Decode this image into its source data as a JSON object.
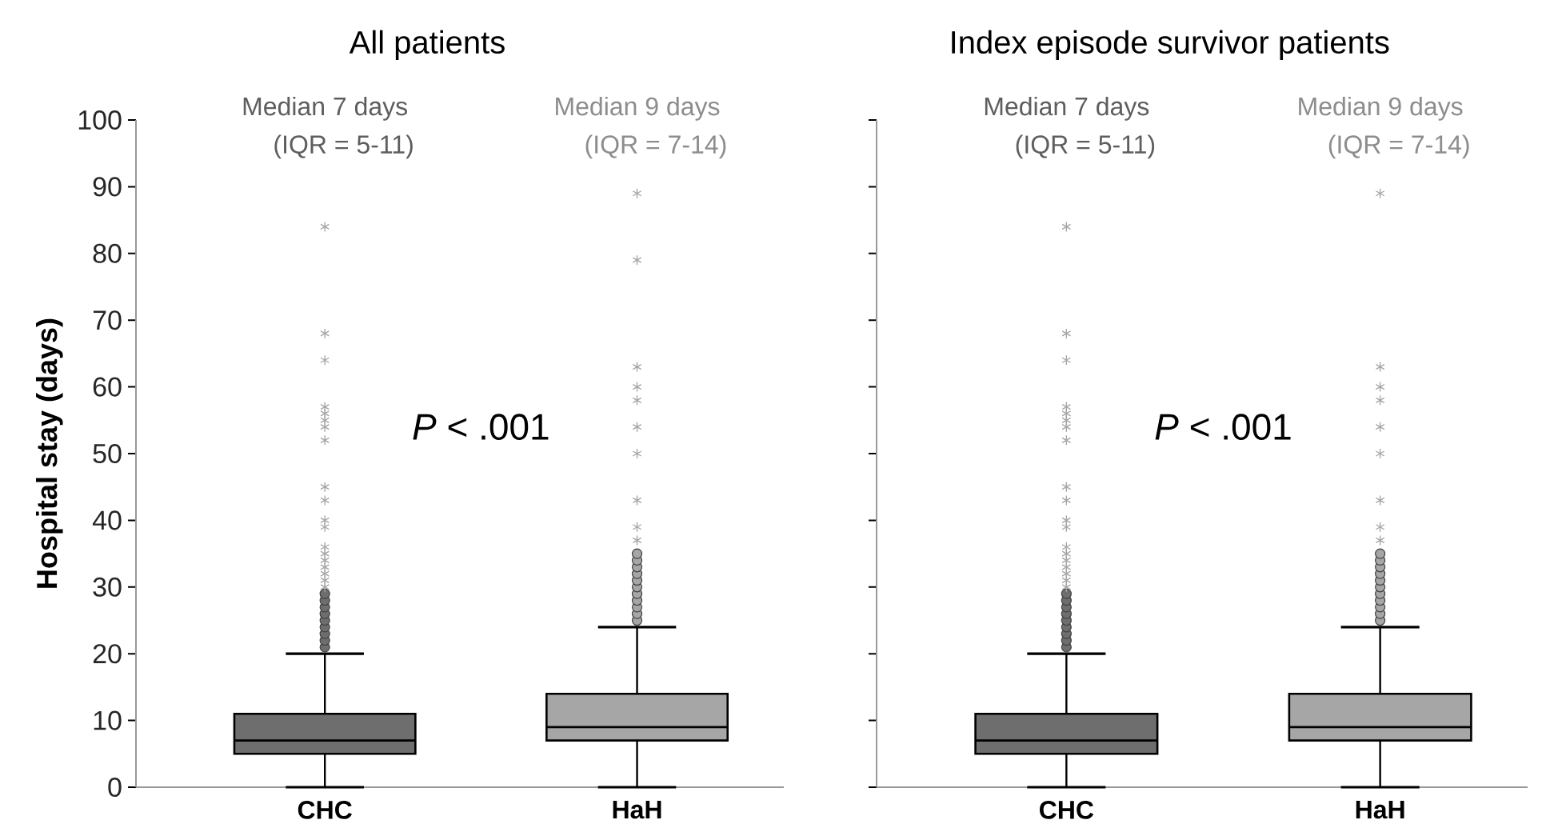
{
  "chart_data": [
    {
      "type": "box",
      "title": "All patients",
      "ylabel": "Hospital stay (days)",
      "categories": [
        "CHC",
        "HaH"
      ],
      "colors": [
        "#6e6e6e",
        "#a6a6a6"
      ],
      "ylim": [
        0,
        100
      ],
      "yticks": [
        0,
        10,
        20,
        30,
        40,
        50,
        60,
        70,
        80,
        90,
        100
      ],
      "boxes": [
        {
          "low": 0,
          "q1": 5,
          "median": 7,
          "q3": 11,
          "high": 20,
          "outliers": [
            21,
            22,
            23,
            24,
            25,
            26,
            27,
            28,
            29,
            30,
            31,
            32,
            33,
            34,
            35,
            36,
            39,
            40,
            43,
            45,
            52,
            54,
            55,
            56,
            57,
            64,
            68,
            84
          ]
        },
        {
          "low": 0,
          "q1": 7,
          "median": 9,
          "q3": 14,
          "high": 24,
          "outliers": [
            25,
            26,
            27,
            28,
            29,
            30,
            31,
            32,
            33,
            34,
            35,
            37,
            39,
            43,
            50,
            54,
            58,
            60,
            63,
            79,
            89
          ]
        }
      ],
      "annotations": [
        "Median 7 days",
        "(IQR = 5-11)",
        "Median 9 days",
        "(IQR = 7-14)",
        "*P* < .001"
      ]
    },
    {
      "type": "box",
      "title": "Index episode survivor patients",
      "categories": [
        "CHC",
        "HaH"
      ],
      "colors": [
        "#6e6e6e",
        "#a6a6a6"
      ],
      "ylim": [
        0,
        100
      ],
      "yticks": [
        0,
        10,
        20,
        30,
        40,
        50,
        60,
        70,
        80,
        90,
        100
      ],
      "tick_labels": "x",
      "boxes": [
        {
          "low": 0,
          "q1": 5,
          "median": 7,
          "q3": 11,
          "high": 20,
          "outliers": [
            21,
            22,
            23,
            24,
            25,
            26,
            27,
            28,
            29,
            30,
            31,
            32,
            33,
            34,
            35,
            36,
            39,
            40,
            43,
            45,
            52,
            54,
            55,
            56,
            57,
            64,
            68,
            84
          ]
        },
        {
          "low": 0,
          "q1": 7,
          "median": 9,
          "q3": 14,
          "high": 24,
          "outliers": [
            25,
            26,
            27,
            28,
            29,
            30,
            31,
            32,
            33,
            34,
            35,
            37,
            39,
            43,
            50,
            54,
            58,
            60,
            63,
            89
          ]
        }
      ],
      "annotations": [
        "Median 7 days",
        "(IQR = 5-11)",
        "Median 9 days",
        "(IQR = 7-14)",
        "*P* < .001"
      ]
    }
  ]
}
